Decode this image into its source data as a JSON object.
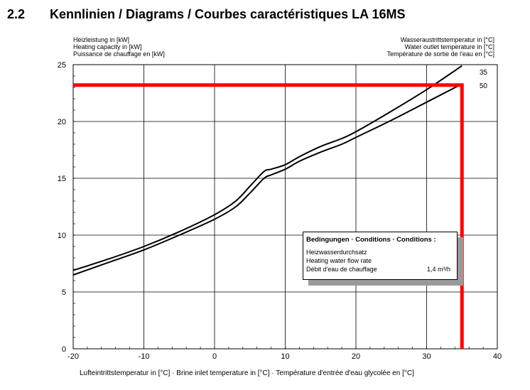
{
  "section": {
    "number": "2.2",
    "title": "Kennlinien / Diagrams / Courbes caractéristiques LA 16MS"
  },
  "chart_data": {
    "type": "line",
    "ylabel_lines": [
      "Heizleistung in [kW]",
      "Heating capacity in [kW]",
      "Puissance de chauffage en [kW]"
    ],
    "legend_title_lines": [
      "Wasseraustrittstemperatur in [°C]",
      "Water outlet temperature in [°C]",
      "Température de sortie de l'eau en [°C]"
    ],
    "xlabel": "Lufteintrittstemperatur in [°C] · Brine inlet temperature in [°C] · Température d'entrée d'eau glycolée en [°C]",
    "xlim": [
      -20,
      40
    ],
    "ylim": [
      0,
      25
    ],
    "x_ticks": [
      "-20",
      "-10",
      "0",
      "10",
      "20",
      "30",
      "40"
    ],
    "y_ticks": [
      "0",
      "5",
      "10",
      "15",
      "20",
      "25"
    ],
    "grid": true,
    "series": [
      {
        "name": "35",
        "x": [
          -20,
          -15,
          -10,
          -5,
          0,
          3,
          5,
          7,
          8,
          10,
          12,
          15,
          18,
          20,
          25,
          30,
          35
        ],
        "y": [
          6.9,
          7.9,
          9.0,
          10.3,
          11.8,
          13.0,
          14.3,
          15.6,
          15.8,
          16.2,
          16.9,
          17.8,
          18.5,
          19.1,
          20.9,
          22.8,
          24.9
        ]
      },
      {
        "name": "50",
        "x": [
          -20,
          -15,
          -10,
          -5,
          0,
          3,
          5,
          7,
          8,
          10,
          12,
          15,
          18,
          20,
          25,
          30,
          35
        ],
        "y": [
          6.5,
          7.6,
          8.7,
          10.0,
          11.4,
          12.5,
          13.7,
          15.0,
          15.3,
          15.8,
          16.5,
          17.3,
          18.0,
          18.6,
          20.1,
          21.7,
          23.3
        ]
      }
    ],
    "annotation": {
      "title": "Bedingungen · Conditions · Conditions :",
      "lines": [
        "Heizwasserdurchsatz",
        "Heating water flow rate",
        "Débit d'eau de chauffage"
      ],
      "value": "1,4 m³/h"
    },
    "overlay": {
      "color": "#ff0000",
      "x": 35,
      "y": 23.2
    }
  }
}
